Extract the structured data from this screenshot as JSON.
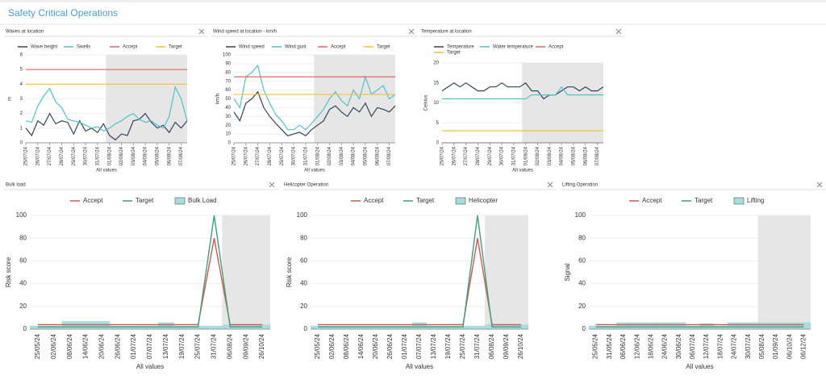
{
  "page_title": "Safety Critical Operations",
  "chart_data": [
    {
      "type": "line",
      "title": "Waves at location",
      "ylabel": "m",
      "xlabel": "All values",
      "x": [
        0,
        0.5,
        1,
        1.5,
        2,
        2.5,
        3,
        3.5,
        4,
        4.5,
        5,
        5.5,
        6,
        6.5,
        7,
        7.5,
        8,
        8.5,
        9,
        9.5,
        10,
        10.5,
        11,
        11.5,
        12,
        12.5,
        13,
        13.5
      ],
      "xlim": [
        0,
        13.5
      ],
      "xticks": [
        {
          "value": 0,
          "label": "25/07/24"
        },
        {
          "value": 1,
          "label": "26/07/24"
        },
        {
          "value": 2,
          "label": "27/07/24"
        },
        {
          "value": 3,
          "label": "28/07/24"
        },
        {
          "value": 4,
          "label": "29/07/24"
        },
        {
          "value": 5,
          "label": "30/07/24"
        },
        {
          "value": 6,
          "label": "31/07/24"
        },
        {
          "value": 7,
          "label": "01/08/24"
        },
        {
          "value": 8,
          "label": "02/08/24"
        },
        {
          "value": 9,
          "label": "03/08/24"
        },
        {
          "value": 10,
          "label": "04/08/24"
        },
        {
          "value": 11,
          "label": "05/08/24"
        },
        {
          "value": 12,
          "label": "06/08/24"
        },
        {
          "value": 13,
          "label": "07/08/24"
        }
      ],
      "ylim": [
        0,
        6
      ],
      "yticks": [
        0,
        1,
        2,
        3,
        4,
        5,
        6
      ],
      "shade_from": 6.7,
      "series": [
        {
          "name": "Wave height",
          "color": "#34425a",
          "values": [
            1.0,
            0.5,
            1.5,
            1.2,
            2.0,
            1.3,
            1.5,
            1.4,
            0.6,
            1.5,
            0.8,
            1.0,
            0.7,
            1.3,
            0.5,
            0.2,
            0.6,
            0.5,
            1.5,
            1.6,
            2.0,
            1.4,
            1.0,
            1.2,
            0.7,
            1.4,
            1.0,
            1.5
          ]
        },
        {
          "name": "Swells",
          "color": "#4fc3c8",
          "values": [
            1.5,
            1.4,
            2.5,
            3.2,
            3.7,
            2.8,
            2.4,
            1.6,
            1.5,
            1.4,
            1.2,
            1.0,
            1.1,
            0.8,
            1.0,
            1.3,
            1.5,
            1.8,
            2.0,
            1.6,
            1.4,
            1.5,
            1.2,
            1.0,
            1.8,
            3.8,
            3.0,
            1.5
          ]
        },
        {
          "name": "Accept",
          "color": "#e06666",
          "level": 5
        },
        {
          "name": "Target",
          "color": "#f1c232",
          "level": 4
        }
      ]
    },
    {
      "type": "line",
      "title": "Wind speed at location - km/h",
      "ylabel": "km/h",
      "xlabel": "All values",
      "x": [
        0,
        0.5,
        1,
        1.5,
        2,
        2.5,
        3,
        3.5,
        4,
        4.5,
        5,
        5.5,
        6,
        6.5,
        7,
        7.5,
        8,
        8.5,
        9,
        9.5,
        10,
        10.5,
        11,
        11.5,
        12,
        12.5,
        13,
        13.5
      ],
      "xlim": [
        0,
        13.5
      ],
      "xticks": [
        {
          "value": 0,
          "label": "25/07/24"
        },
        {
          "value": 1,
          "label": "26/07/24"
        },
        {
          "value": 2,
          "label": "27/07/24"
        },
        {
          "value": 3,
          "label": "28/07/24"
        },
        {
          "value": 4,
          "label": "29/07/24"
        },
        {
          "value": 5,
          "label": "30/07/24"
        },
        {
          "value": 6,
          "label": "31/07/24"
        },
        {
          "value": 7,
          "label": "01/08/24"
        },
        {
          "value": 8,
          "label": "02/08/24"
        },
        {
          "value": 9,
          "label": "03/08/24"
        },
        {
          "value": 10,
          "label": "04/08/24"
        },
        {
          "value": 11,
          "label": "05/08/24"
        },
        {
          "value": 12,
          "label": "06/08/24"
        },
        {
          "value": 13,
          "label": "07/08/24"
        }
      ],
      "ylim": [
        0,
        100
      ],
      "yticks": [
        0,
        10,
        20,
        30,
        40,
        50,
        60,
        70,
        80,
        90,
        100
      ],
      "shade_from": 6.7,
      "series": [
        {
          "name": "Wind speed",
          "color": "#34425a",
          "values": [
            35,
            25,
            45,
            50,
            58,
            40,
            30,
            22,
            15,
            8,
            10,
            12,
            8,
            15,
            20,
            25,
            38,
            42,
            35,
            30,
            40,
            35,
            45,
            30,
            40,
            38,
            35,
            42
          ]
        },
        {
          "name": "Wind gust",
          "color": "#4fc3c8",
          "values": [
            50,
            40,
            75,
            80,
            88,
            60,
            45,
            32,
            25,
            15,
            15,
            20,
            15,
            22,
            30,
            38,
            50,
            58,
            48,
            42,
            60,
            50,
            75,
            55,
            60,
            65,
            50,
            55
          ]
        },
        {
          "name": "Accept",
          "color": "#e06666",
          "level": 75
        },
        {
          "name": "Target",
          "color": "#f1c232",
          "level": 55
        }
      ]
    },
    {
      "type": "line",
      "title": "Temperature at location",
      "ylabel": "Celsius",
      "xlabel": "All values",
      "x": [
        0,
        0.5,
        1,
        1.5,
        2,
        2.5,
        3,
        3.5,
        4,
        4.5,
        5,
        5.5,
        6,
        6.5,
        7,
        7.5,
        8,
        8.5,
        9,
        9.5,
        10,
        10.5,
        11,
        11.5,
        12,
        12.5,
        13,
        13.5
      ],
      "xlim": [
        0,
        13.5
      ],
      "xticks": [
        {
          "value": 0,
          "label": "25/07/24"
        },
        {
          "value": 1,
          "label": "26/07/24"
        },
        {
          "value": 2,
          "label": "27/07/24"
        },
        {
          "value": 3,
          "label": "28/07/24"
        },
        {
          "value": 4,
          "label": "29/07/24"
        },
        {
          "value": 5,
          "label": "30/07/24"
        },
        {
          "value": 6,
          "label": "31/07/24"
        },
        {
          "value": 7,
          "label": "01/08/24"
        },
        {
          "value": 8,
          "label": "02/08/24"
        },
        {
          "value": 9,
          "label": "03/08/24"
        },
        {
          "value": 10,
          "label": "04/08/24"
        },
        {
          "value": 11,
          "label": "05/08/24"
        },
        {
          "value": 12,
          "label": "06/08/24"
        },
        {
          "value": 13,
          "label": "07/08/24"
        }
      ],
      "ylim": [
        0,
        20
      ],
      "yticks": [
        0,
        5,
        10,
        15,
        20
      ],
      "shade_from": 6.7,
      "series": [
        {
          "name": "Temperature",
          "color": "#34425a",
          "values": [
            13,
            14,
            15,
            14,
            15,
            14,
            13,
            13,
            14,
            14,
            15,
            14,
            14,
            14,
            15,
            13,
            13,
            11,
            12,
            12,
            13,
            14,
            14,
            13,
            14,
            13,
            13,
            14
          ]
        },
        {
          "name": "Water temperature",
          "color": "#4fc3c8",
          "values": [
            11,
            11,
            11,
            11,
            11,
            11,
            11,
            11,
            11,
            11,
            11,
            11,
            11,
            11,
            11,
            12,
            12,
            12,
            12,
            12,
            14,
            12,
            12,
            12,
            12,
            12,
            12,
            12
          ]
        },
        {
          "name": "Accept",
          "color": "#e06666",
          "level": 0
        },
        {
          "name": "Target",
          "color": "#f1c232",
          "level": 3
        }
      ]
    },
    {
      "type": "combo",
      "title": "Bulk load",
      "ylabel": "Risk score",
      "xlabel": "All values",
      "categories": [
        "25/05/24",
        "02/06/24",
        "08/06/24",
        "14/06/24",
        "20/06/24",
        "26/06/24",
        "01/07/24",
        "07/07/24",
        "13/07/24",
        "19/07/24",
        "25/07/24",
        "31/07/24",
        "06/08/24",
        "09/09/24",
        "26/10/24"
      ],
      "ylim": [
        0,
        100
      ],
      "yticks": [
        0,
        20,
        40,
        60,
        80,
        100
      ],
      "shade_from": 11.5,
      "series": [
        {
          "name": "Accept",
          "kind": "line",
          "color": "#d9534f",
          "values": [
            4,
            4,
            4,
            4,
            4,
            4,
            4,
            4,
            4,
            4,
            4,
            80,
            4,
            4,
            4
          ]
        },
        {
          "name": "Target",
          "kind": "line",
          "color": "#3aa37a",
          "values": [
            2,
            2,
            2,
            2,
            2,
            2,
            2,
            2,
            2,
            2,
            2,
            100,
            2,
            2,
            2
          ]
        },
        {
          "name": "Bulk Load",
          "kind": "bar",
          "color": "#a8dde0",
          "values": [
            3,
            3,
            7,
            7,
            7,
            3,
            3,
            3,
            6,
            3,
            3,
            3,
            4,
            4,
            4
          ]
        }
      ]
    },
    {
      "type": "combo",
      "title": "Helicopter Operation",
      "ylabel": "Risk score",
      "xlabel": "All values",
      "categories": [
        "25/05/24",
        "02/06/24",
        "08/06/24",
        "14/06/24",
        "20/06/24",
        "26/06/24",
        "01/07/24",
        "07/07/24",
        "13/07/24",
        "19/07/24",
        "25/07/24",
        "31/07/24",
        "06/08/24",
        "09/09/24",
        "26/10/24"
      ],
      "ylim": [
        0,
        100
      ],
      "yticks": [
        0,
        20,
        40,
        60,
        80,
        100
      ],
      "shade_from": 11.5,
      "series": [
        {
          "name": "Accept",
          "kind": "line",
          "color": "#d9534f",
          "values": [
            4,
            4,
            4,
            4,
            4,
            4,
            4,
            4,
            4,
            4,
            4,
            80,
            4,
            4,
            4
          ]
        },
        {
          "name": "Target",
          "kind": "line",
          "color": "#3aa37a",
          "values": [
            2,
            2,
            2,
            2,
            2,
            2,
            2,
            2,
            2,
            2,
            2,
            100,
            2,
            2,
            2
          ]
        },
        {
          "name": "Helicopter",
          "kind": "bar",
          "color": "#a8dde0",
          "values": [
            3,
            3,
            3,
            3,
            3,
            3,
            3,
            6,
            3,
            3,
            3,
            3,
            4,
            4,
            4
          ]
        }
      ]
    },
    {
      "type": "combo",
      "title": "Lifting Operation",
      "ylabel": "Signal",
      "xlabel": "All values",
      "categories": [
        "25/05/24",
        "31/05/24",
        "06/06/24",
        "12/06/24",
        "18/06/24",
        "24/06/24",
        "30/06/24",
        "06/07/24",
        "12/07/24",
        "18/07/24",
        "24/07/24",
        "30/07/24",
        "05/08/24",
        "01/09/24",
        "06/10/24",
        "06/12/24"
      ],
      "ylim": [
        0,
        100
      ],
      "yticks": [
        0,
        20,
        40,
        60,
        80,
        100
      ],
      "shade_from": 11.7,
      "series": [
        {
          "name": "Accept",
          "kind": "line",
          "color": "#d9534f",
          "values": [
            4,
            4,
            4,
            4,
            4,
            4,
            4,
            4,
            4,
            4,
            4,
            4,
            4,
            4,
            4,
            4
          ]
        },
        {
          "name": "Target",
          "kind": "line",
          "color": "#3aa37a",
          "values": [
            2,
            2,
            2,
            2,
            2,
            2,
            2,
            2,
            2,
            2,
            2,
            2,
            2,
            2,
            2,
            2
          ]
        },
        {
          "name": "Lifting",
          "kind": "bar",
          "color": "#a8dde0",
          "values": [
            3,
            3,
            6,
            6,
            6,
            6,
            6,
            3,
            5,
            3,
            6,
            6,
            6,
            6,
            6,
            6
          ]
        }
      ]
    }
  ]
}
